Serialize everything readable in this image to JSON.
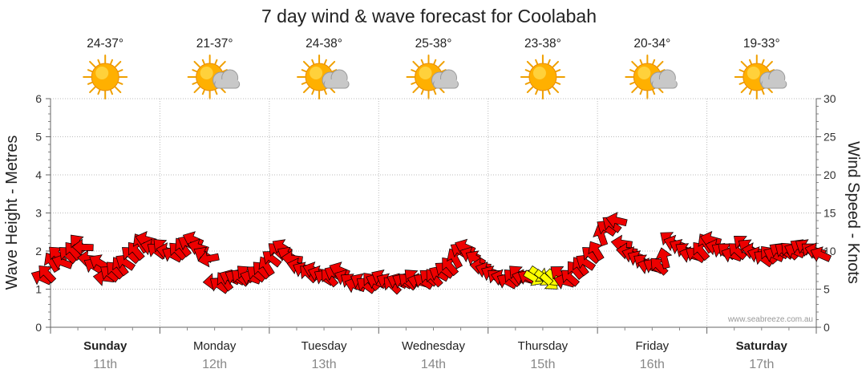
{
  "chart_data": {
    "type": "line",
    "title": "7 day wind & wave forecast for Coolabah",
    "ylabel_left": "Wave Height - Metres",
    "ylabel_right": "Wind Speed - Knots",
    "ylim_left": [
      0,
      6
    ],
    "ylim_right": [
      0,
      30
    ],
    "yticks_left": [
      "0",
      "1",
      "2",
      "3",
      "4",
      "5",
      "6"
    ],
    "yticks_right": [
      "0",
      "5",
      "10",
      "15",
      "20",
      "25",
      "30"
    ],
    "watermark": "www.seabreeze.com.au",
    "days": [
      {
        "name": "Sunday",
        "date": "11th",
        "temp": "24-37°",
        "icon": "sun-icon",
        "bold": true
      },
      {
        "name": "Monday",
        "date": "12th",
        "temp": "21-37°",
        "icon": "partly-cloudy-icon",
        "bold": false
      },
      {
        "name": "Tuesday",
        "date": "13th",
        "temp": "24-38°",
        "icon": "partly-cloudy-icon",
        "bold": false
      },
      {
        "name": "Wednesday",
        "date": "14th",
        "temp": "25-38°",
        "icon": "partly-cloudy-icon",
        "bold": false
      },
      {
        "name": "Thursday",
        "date": "15th",
        "temp": "23-38°",
        "icon": "sun-icon",
        "bold": false
      },
      {
        "name": "Friday",
        "date": "16th",
        "temp": "20-34°",
        "icon": "partly-cloudy-icon",
        "bold": false
      },
      {
        "name": "Saturday",
        "date": "17th",
        "temp": "19-33°",
        "icon": "partly-cloudy-icon",
        "bold": true
      }
    ],
    "series": [
      {
        "name": "Wind Speed (knots)",
        "arrow_color": "#ee0000",
        "highlight_color": "#ffff00",
        "values": [
          6.5,
          7,
          8.5,
          9.5,
          8.5,
          9.5,
          10,
          11,
          10.5,
          9,
          8,
          8.5,
          6.5,
          7,
          7.5,
          8,
          8.5,
          9.5,
          10,
          11,
          11.5,
          10.5,
          10,
          10.5,
          10,
          9.5,
          10,
          10.5,
          11,
          11.5,
          10.5,
          9.5,
          9,
          6,
          5.5,
          6,
          6.5,
          6.5,
          6.5,
          7,
          6.5,
          7,
          7.5,
          8,
          9,
          10,
          10.5,
          9.5,
          9,
          8,
          7.5,
          7,
          7.5,
          7,
          6.5,
          6.5,
          7,
          7.5,
          6.5,
          6,
          5.5,
          6,
          5.5,
          6,
          6,
          6.5,
          6,
          5.5,
          6,
          6,
          6,
          6.5,
          6,
          6,
          6.5,
          6.5,
          7,
          7.5,
          8,
          9,
          10,
          10.5,
          9.5,
          9,
          8,
          7.5,
          7,
          6.5,
          6.5,
          6,
          6.5,
          7,
          6.5,
          6.5,
          6.5,
          7,
          6.5,
          6,
          6.5,
          7,
          6,
          6.5,
          7.5,
          8,
          8.5,
          9.5,
          10,
          12,
          13,
          13.5,
          14,
          11,
          10,
          9.5,
          9,
          8.5,
          8,
          8,
          8,
          9,
          11.5,
          11,
          10.5,
          10,
          9.5,
          9.5,
          10,
          11,
          11.5,
          10.5,
          10,
          10,
          9.5,
          10,
          11,
          10.5,
          10,
          9.5,
          9,
          9.5,
          9.5,
          10,
          10,
          10,
          10,
          10.5,
          10.5,
          10,
          10,
          9.5
        ],
        "highlight_from": 94,
        "highlight_to": 98
      }
    ]
  }
}
